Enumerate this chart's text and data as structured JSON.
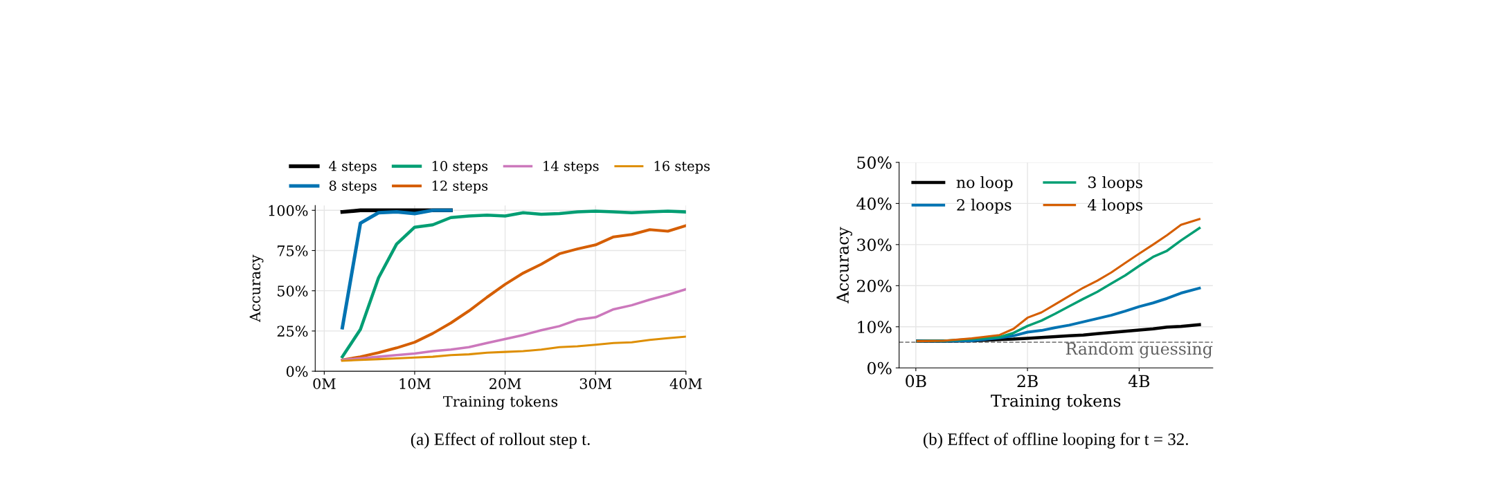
{
  "chart_data": [
    {
      "type": "line",
      "xlabel": "Training tokens",
      "ylabel": "Accuracy",
      "annotations": [
        "(a) Effect of rollout step t."
      ],
      "xlim": [
        -1,
        40
      ],
      "ylim": [
        0,
        103
      ],
      "xticks": [
        {
          "value": 0,
          "label": "0M"
        },
        {
          "value": 10,
          "label": "10M"
        },
        {
          "value": 20,
          "label": "20M"
        },
        {
          "value": 30,
          "label": "30M"
        },
        {
          "value": 40,
          "label": "40M"
        }
      ],
      "yticks": [
        {
          "value": 0,
          "label": "0%"
        },
        {
          "value": 25,
          "label": "25%"
        },
        {
          "value": 50,
          "label": "50%"
        },
        {
          "value": 75,
          "label": "75%"
        },
        {
          "value": 100,
          "label": "100%"
        }
      ],
      "grid": true,
      "legend": "top",
      "marker": "none",
      "line_style": "solid",
      "series": [
        {
          "name": "4 steps",
          "color": "#000000",
          "x": [
            2,
            4,
            6,
            8,
            10,
            12,
            14
          ],
          "values": [
            99,
            100,
            100,
            100,
            100,
            100,
            100
          ]
        },
        {
          "name": "8 steps",
          "color": "#0173b2",
          "x": [
            2,
            4,
            6,
            8,
            10,
            12,
            14
          ],
          "values": [
            27,
            92,
            98.5,
            99,
            98,
            100,
            100
          ]
        },
        {
          "name": "10 steps",
          "color": "#029e73",
          "x": [
            2,
            4,
            6,
            8,
            10,
            12,
            14,
            16,
            18,
            20,
            22,
            24,
            26,
            28,
            30,
            32,
            34,
            36,
            38,
            40
          ],
          "values": [
            9,
            26,
            58,
            79,
            89.5,
            91,
            95.5,
            96.5,
            97,
            96.5,
            98.5,
            97.5,
            98,
            99,
            99.5,
            99,
            98.5,
            99,
            99.5,
            99
          ]
        },
        {
          "name": "12 steps",
          "color": "#d55e00",
          "x": [
            2,
            4,
            6,
            8,
            10,
            12,
            14,
            16,
            18,
            20,
            22,
            24,
            26,
            28,
            30,
            32,
            34,
            36,
            38,
            40
          ],
          "values": [
            7,
            9,
            11.5,
            14.5,
            18,
            23.5,
            30,
            37.5,
            46,
            54,
            61,
            66.5,
            73,
            76,
            78.5,
            83.5,
            85,
            88,
            87,
            90.5
          ]
        },
        {
          "name": "14 steps",
          "color": "#cc78bc",
          "x": [
            2,
            4,
            6,
            8,
            10,
            12,
            14,
            16,
            18,
            20,
            22,
            24,
            26,
            28,
            30,
            32,
            34,
            36,
            38,
            40
          ],
          "values": [
            7,
            8,
            9,
            10,
            11,
            12.5,
            13.5,
            15,
            17.5,
            20,
            22.5,
            25.5,
            28,
            32,
            33.5,
            38.5,
            41,
            44.5,
            47.5,
            51
          ]
        },
        {
          "name": "16 steps",
          "color": "#de8f05",
          "x": [
            2,
            4,
            6,
            8,
            10,
            12,
            14,
            16,
            18,
            20,
            22,
            24,
            26,
            28,
            30,
            32,
            34,
            36,
            38,
            40
          ],
          "values": [
            6.5,
            7,
            7.5,
            8,
            8.5,
            9,
            10,
            10.5,
            11.5,
            12,
            12.5,
            13.5,
            15,
            15.5,
            16.5,
            17.5,
            18,
            19.5,
            20.5,
            21.5
          ]
        }
      ]
    },
    {
      "type": "line",
      "xlabel": "Training tokens",
      "ylabel": "Accuracy",
      "annotations": [
        "(b) Effect of offline looping for t = 32."
      ],
      "xlim": [
        -0.3,
        5.32
      ],
      "ylim": [
        0,
        50
      ],
      "xticks": [
        {
          "value": 0,
          "label": "0B"
        },
        {
          "value": 2,
          "label": "2B"
        },
        {
          "value": 4,
          "label": "4B"
        }
      ],
      "yticks": [
        {
          "value": 0,
          "label": "0%"
        },
        {
          "value": 10,
          "label": "10%"
        },
        {
          "value": 20,
          "label": "20%"
        },
        {
          "value": 30,
          "label": "30%"
        },
        {
          "value": 40,
          "label": "40%"
        },
        {
          "value": 50,
          "label": "50%"
        }
      ],
      "grid": true,
      "legend": "top left",
      "marker": "none",
      "line_style": "solid",
      "ref_lines": [
        {
          "axis": "y",
          "value": 6.25,
          "label": "Random guessing",
          "color": "#808080",
          "line_style": "dashed"
        }
      ],
      "series": [
        {
          "name": "no loop",
          "color": "#000000",
          "x": [
            0.03,
            0.5,
            1.0,
            1.5,
            1.75,
            2.0,
            2.25,
            2.5,
            2.75,
            3.0,
            3.25,
            3.5,
            3.75,
            4.0,
            4.25,
            4.5,
            4.75,
            5.08
          ],
          "values": [
            6.5,
            6.5,
            6.6,
            6.9,
            7.0,
            7.2,
            7.4,
            7.6,
            7.8,
            8.0,
            8.3,
            8.6,
            8.9,
            9.2,
            9.5,
            9.9,
            10.1,
            10.5
          ]
        },
        {
          "name": "2 loops",
          "color": "#0173b2",
          "x": [
            0.03,
            0.5,
            1.0,
            1.5,
            1.75,
            2.0,
            2.25,
            2.5,
            2.75,
            3.0,
            3.25,
            3.5,
            3.75,
            4.0,
            4.25,
            4.5,
            4.75,
            5.08
          ],
          "values": [
            6.5,
            6.5,
            6.6,
            7.3,
            7.8,
            8.7,
            9.1,
            9.8,
            10.4,
            11.2,
            12.0,
            12.8,
            13.8,
            14.9,
            15.8,
            16.9,
            18.2,
            19.4
          ]
        },
        {
          "name": "3 loops",
          "color": "#029e73",
          "x": [
            0.03,
            0.5,
            1.0,
            1.5,
            1.75,
            2.0,
            2.25,
            2.5,
            2.75,
            3.0,
            3.25,
            3.5,
            3.75,
            4.0,
            4.25,
            4.5,
            4.75,
            5.08
          ],
          "values": [
            6.5,
            6.6,
            7.0,
            7.5,
            8.5,
            10.2,
            11.5,
            13.2,
            15,
            16.8,
            18.5,
            20.5,
            22.5,
            24.8,
            27,
            28.5,
            31,
            34
          ]
        },
        {
          "name": "4 loops",
          "color": "#d55e00",
          "x": [
            0.03,
            0.5,
            1.0,
            1.5,
            1.75,
            2.0,
            2.25,
            2.5,
            2.75,
            3.0,
            3.25,
            3.5,
            3.75,
            4.0,
            4.25,
            4.5,
            4.75,
            5.08
          ],
          "values": [
            6.5,
            6.6,
            7.2,
            8,
            9.5,
            12.2,
            13.5,
            15.5,
            17.5,
            19.5,
            21.2,
            23.2,
            25.5,
            27.8,
            30,
            32.3,
            34.8,
            36.2
          ]
        }
      ]
    }
  ]
}
